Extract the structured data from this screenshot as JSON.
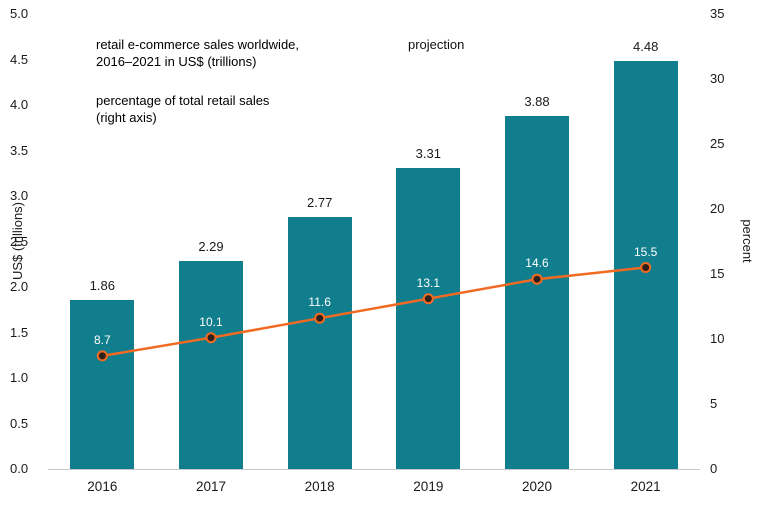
{
  "chart_data": {
    "type": "bar",
    "title": "retail e-commerce sales worldwide, 2016–2021 in US$ (trillions)",
    "categories": [
      "2016",
      "2017",
      "2018",
      "2019",
      "2020",
      "2021"
    ],
    "series": [
      {
        "name": "retail e-commerce sales worldwide, 2016–2021 in US$ (trillions)",
        "type": "bar",
        "axis": "left",
        "values": [
          1.86,
          2.29,
          2.77,
          3.31,
          3.88,
          4.48
        ],
        "value_labels": [
          "1.86",
          "2.29",
          "2.77",
          "3.31",
          "3.88",
          "4.48"
        ],
        "color": "#117e8e",
        "label_color": "#1a1a1a"
      },
      {
        "name": "percentage of total retail sales (right axis)",
        "type": "line",
        "axis": "right",
        "values": [
          8.7,
          10.1,
          11.6,
          13.1,
          14.6,
          15.5
        ],
        "value_labels": [
          "8.7",
          "10.1",
          "11.6",
          "13.1",
          "14.6",
          "15.5"
        ],
        "color": "#f26a21",
        "marker_color": "#30201a",
        "label_color": "#ffffff"
      }
    ],
    "left_axis": {
      "title": "US$ (trillions)",
      "min": 0,
      "max": 5,
      "step": 0.5
    },
    "right_axis": {
      "title": "percent",
      "min": 0,
      "max": 35,
      "step": 5
    },
    "annotation": "projection",
    "grid": false,
    "legend_position": "top-left"
  },
  "legend": {
    "bar_line1": "retail e-commerce sales worldwide,",
    "bar_line2": "2016–2021 in US$ (trillions)",
    "pct_line1": "percentage of total retail sales",
    "pct_line2": "(right axis)"
  },
  "colors": {
    "bar": "#117e8e",
    "line": "#f26a21",
    "axis_line": "#c9c9c9",
    "text": "#1a1a1a"
  }
}
